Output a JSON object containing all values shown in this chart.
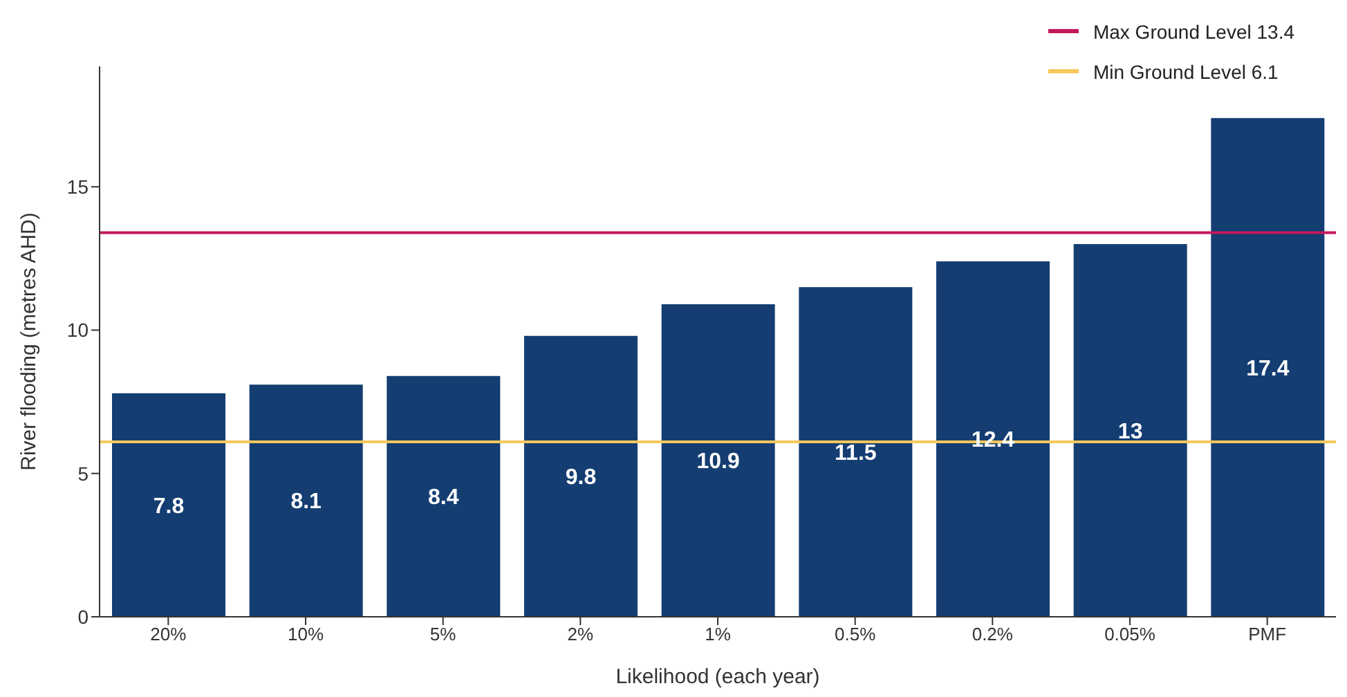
{
  "chart_data": {
    "type": "bar",
    "xlabel": "Likelihood (each year)",
    "ylabel": "River flooding (metres AHD)",
    "categories": [
      "20%",
      "10%",
      "5%",
      "2%",
      "1%",
      "0.5%",
      "0.2%",
      "0.05%",
      "PMF"
    ],
    "values": [
      7.8,
      8.1,
      8.4,
      9.8,
      10.9,
      11.5,
      12.4,
      13,
      17.4
    ],
    "color": "#143d72",
    "ylim": [
      0,
      19.2
    ],
    "yticks": [
      0,
      5,
      10,
      15
    ],
    "grid": false,
    "data_labels": true,
    "legend": "top right",
    "ref_lines": [
      {
        "axis": "y",
        "value": 13.4,
        "label": "Max Ground Level 13.4",
        "color": "#c2185b"
      },
      {
        "axis": "y",
        "value": 6.1,
        "label": "Min Ground Level 6.1",
        "color": "#f7c85c"
      }
    ]
  }
}
